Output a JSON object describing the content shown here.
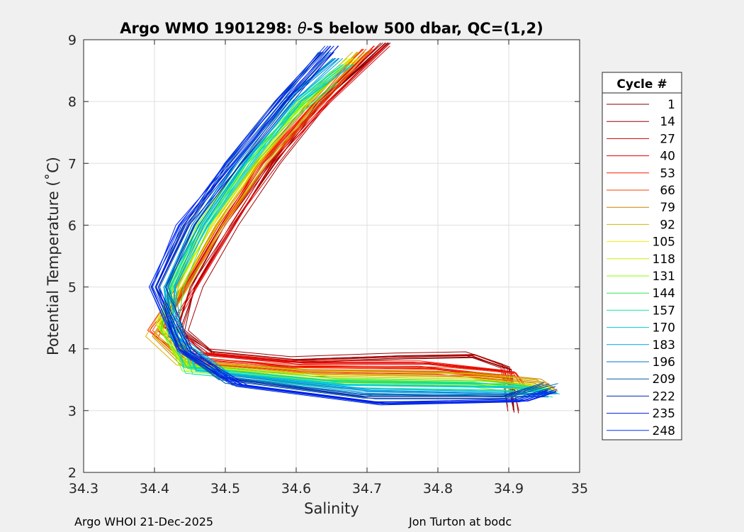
{
  "chart_data": {
    "type": "line",
    "title": "Argo WMO 1901298: θ-S below 500 dbar,  QC=(1,2)",
    "title_prefix": "Argo WMO 1901298: ",
    "title_theta": "θ",
    "title_suffix": "-S below 500 dbar,  QC=(1,2)",
    "xlabel": "Salinity",
    "ylabel": "Potential Temperature (˚C)",
    "xlim": [
      34.3,
      35
    ],
    "ylim": [
      2,
      9
    ],
    "xticks": [
      "34.3",
      "34.4",
      "34.5",
      "34.6",
      "34.7",
      "34.8",
      "34.9",
      "35"
    ],
    "yticks": [
      "2",
      "3",
      "4",
      "5",
      "6",
      "7",
      "8",
      "9"
    ],
    "grid": true,
    "legend_position": "right",
    "legend_title": "Cycle #",
    "legend_entries": [
      "1",
      "14",
      "27",
      "40",
      "53",
      "66",
      "79",
      "92",
      "105",
      "118",
      "131",
      "144",
      "157",
      "170",
      "183",
      "196",
      "209",
      "222",
      "235",
      "248"
    ],
    "legend_colors": [
      "#800000",
      "#a00000",
      "#cc0000",
      "#e60000",
      "#ff1a00",
      "#ff4000",
      "#cc8000",
      "#d9b300",
      "#f2f200",
      "#c8f000",
      "#80ff00",
      "#33e64d",
      "#1ae6a0",
      "#00ccd9",
      "#00a0e6",
      "#0078c8",
      "#005aa0",
      "#002bb3",
      "#0014e6",
      "#0033ff"
    ],
    "series": [
      {
        "values": [
          [
            34.73,
            8.95
          ],
          [
            34.64,
            8.0
          ],
          [
            34.57,
            7.0
          ],
          [
            34.51,
            6.0
          ],
          [
            34.46,
            5.0
          ],
          [
            34.44,
            4.3
          ],
          [
            34.48,
            3.95
          ],
          [
            34.6,
            3.82
          ],
          [
            34.75,
            3.88
          ],
          [
            34.85,
            3.9
          ],
          [
            34.9,
            3.7
          ],
          [
            34.91,
            3.0
          ]
        ]
      },
      {
        "values": [
          [
            34.72,
            8.9
          ],
          [
            34.64,
            8.0
          ],
          [
            34.56,
            7.0
          ],
          [
            34.5,
            6.0
          ],
          [
            34.45,
            5.0
          ],
          [
            34.42,
            4.4
          ],
          [
            34.46,
            3.9
          ],
          [
            34.6,
            3.75
          ],
          [
            34.78,
            3.75
          ],
          [
            34.9,
            3.6
          ],
          [
            34.92,
            3.3
          ]
        ]
      },
      {
        "values": [
          [
            34.7,
            8.85
          ],
          [
            34.63,
            8.0
          ],
          [
            34.55,
            7.0
          ],
          [
            34.49,
            6.0
          ],
          [
            34.44,
            5.0
          ],
          [
            34.4,
            4.3
          ],
          [
            34.45,
            3.8
          ],
          [
            34.6,
            3.68
          ],
          [
            34.8,
            3.65
          ],
          [
            34.9,
            3.55
          ]
        ]
      },
      {
        "values": [
          [
            34.69,
            8.8
          ],
          [
            34.62,
            8.0
          ],
          [
            34.55,
            7.0
          ],
          [
            34.49,
            6.0
          ],
          [
            34.44,
            5.0
          ],
          [
            34.4,
            4.2
          ],
          [
            34.44,
            3.75
          ],
          [
            34.62,
            3.6
          ],
          [
            34.85,
            3.55
          ],
          [
            34.94,
            3.45
          ],
          [
            34.96,
            3.3
          ]
        ]
      },
      {
        "values": [
          [
            34.68,
            8.7
          ],
          [
            34.61,
            8.0
          ],
          [
            34.54,
            7.0
          ],
          [
            34.48,
            6.0
          ],
          [
            34.43,
            5.0
          ],
          [
            34.41,
            4.4
          ],
          [
            34.45,
            3.7
          ],
          [
            34.65,
            3.5
          ],
          [
            34.86,
            3.45
          ],
          [
            34.96,
            3.35
          ]
        ]
      },
      {
        "values": [
          [
            34.65,
            8.3
          ],
          [
            34.6,
            7.8
          ],
          [
            34.53,
            7.0
          ],
          [
            34.47,
            6.0
          ],
          [
            34.43,
            5.0
          ],
          [
            34.42,
            4.3
          ],
          [
            34.45,
            3.68
          ],
          [
            34.65,
            3.46
          ],
          [
            34.86,
            3.42
          ],
          [
            34.95,
            3.3
          ]
        ]
      },
      {
        "values": [
          [
            34.67,
            8.6
          ],
          [
            34.6,
            8.0
          ],
          [
            34.53,
            7.0
          ],
          [
            34.47,
            6.0
          ],
          [
            34.42,
            5.0
          ],
          [
            34.42,
            4.6
          ],
          [
            34.45,
            3.65
          ],
          [
            34.66,
            3.42
          ],
          [
            34.9,
            3.38
          ],
          [
            34.96,
            3.28
          ]
        ]
      },
      {
        "values": [
          [
            34.66,
            8.7
          ],
          [
            34.59,
            8.0
          ],
          [
            34.52,
            7.0
          ],
          [
            34.46,
            6.0
          ],
          [
            34.42,
            5.0
          ],
          [
            34.43,
            4.2
          ],
          [
            34.5,
            3.55
          ],
          [
            34.7,
            3.3
          ],
          [
            34.9,
            3.25
          ],
          [
            34.96,
            3.25
          ]
        ]
      },
      {
        "values": [
          [
            34.64,
            8.8
          ],
          [
            34.58,
            8.0
          ],
          [
            34.51,
            7.0
          ],
          [
            34.45,
            6.0
          ],
          [
            34.41,
            5.0
          ],
          [
            34.44,
            4.0
          ],
          [
            34.5,
            3.5
          ],
          [
            34.7,
            3.2
          ],
          [
            34.9,
            3.2
          ],
          [
            34.96,
            3.4
          ]
        ]
      },
      {
        "values": [
          [
            34.65,
            8.9
          ],
          [
            34.59,
            8.1
          ],
          [
            34.51,
            7.0
          ],
          [
            34.44,
            6.0
          ],
          [
            34.4,
            5.0
          ],
          [
            34.44,
            4.0
          ],
          [
            34.52,
            3.45
          ],
          [
            34.72,
            3.15
          ],
          [
            34.92,
            3.2
          ],
          [
            34.96,
            3.35
          ]
        ]
      }
    ]
  },
  "footer": {
    "left": "Argo WHOI 21-Dec-2025",
    "right": "Jon Turton at bodc"
  }
}
